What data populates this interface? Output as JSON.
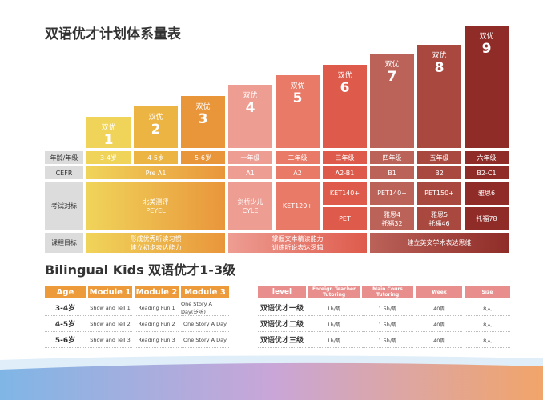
{
  "title": "双语优才计划体系量表",
  "colors": [
    "#f0d45a",
    "#ecb443",
    "#e9963b",
    "#ee9d93",
    "#e97a67",
    "#de5b4c",
    "#bb6259",
    "#a9483f",
    "#8f2c28"
  ],
  "levels": [
    {
      "name": "双优",
      "num": "1",
      "grade": "3-4岁",
      "cefr": ""
    },
    {
      "name": "双优",
      "num": "2",
      "grade": "4-5岁",
      "cefr": ""
    },
    {
      "name": "双优",
      "num": "3",
      "grade": "5-6岁",
      "cefr": ""
    },
    {
      "name": "双优",
      "num": "4",
      "grade": "一年级",
      "cefr": "A1"
    },
    {
      "name": "双优",
      "num": "5",
      "grade": "二年级",
      "cefr": "A2"
    },
    {
      "name": "双优",
      "num": "6",
      "grade": "三年级",
      "cefr": "A2-B1"
    },
    {
      "name": "双优",
      "num": "7",
      "grade": "四年级",
      "cefr": "B1"
    },
    {
      "name": "双优",
      "num": "8",
      "grade": "五年级",
      "cefr": "B2"
    },
    {
      "name": "双优",
      "num": "9",
      "grade": "六年级",
      "cefr": "B2-C1"
    }
  ],
  "row_labels": [
    "年龄/年级",
    "CEFR",
    "考试对标",
    "课程目标"
  ],
  "cefr_pre": "Pre A1",
  "exams": {
    "peyel": "北美测评\nPEYEL",
    "cyle": "剑桥少儿\nCYLE",
    "ket120": "KET120+",
    "ket140": "KET140+",
    "pet": "PET",
    "pet140": "PET140+",
    "ielts4": "雅思4\n托福32",
    "pet150": "PET150+",
    "ielts5": "雅思5\n托福46",
    "ielts6": "雅思6",
    "toefl78": "托福78"
  },
  "goals": [
    "形成优秀听读习惯\n建立初步表达能力",
    "掌握文本精读能力\n训练听说表达逻辑",
    "建立英文学术表达思维"
  ],
  "subtitle": "Bilingual Kids 双语优才1-3级",
  "table1": {
    "headers": [
      "Age",
      "Module 1",
      "Module 2",
      "Module 3"
    ],
    "rows": [
      [
        "3-4岁",
        "Show and Tell 1",
        "Reading Fun 1",
        "One Story A Day(泛听)"
      ],
      [
        "4-5岁",
        "Show and Tell 2",
        "Reading Fun 2",
        "One Story A Day"
      ],
      [
        "5-6岁",
        "Show and Tell 3",
        "Reading Fun 3",
        "One Story A Day"
      ]
    ]
  },
  "table2": {
    "headers": [
      "level",
      "Foreign Teacher Tutoring",
      "Main Cours Tutoring",
      "Week",
      "Size"
    ],
    "rows": [
      [
        "双语优才一级",
        "1h/周",
        "1.5h/周",
        "40周",
        "8人"
      ],
      [
        "双语优才二级",
        "1h/周",
        "1.5h/周",
        "40周",
        "8人"
      ],
      [
        "双语优才三级",
        "1h/周",
        "1.5h/周",
        "40周",
        "8人"
      ]
    ]
  }
}
